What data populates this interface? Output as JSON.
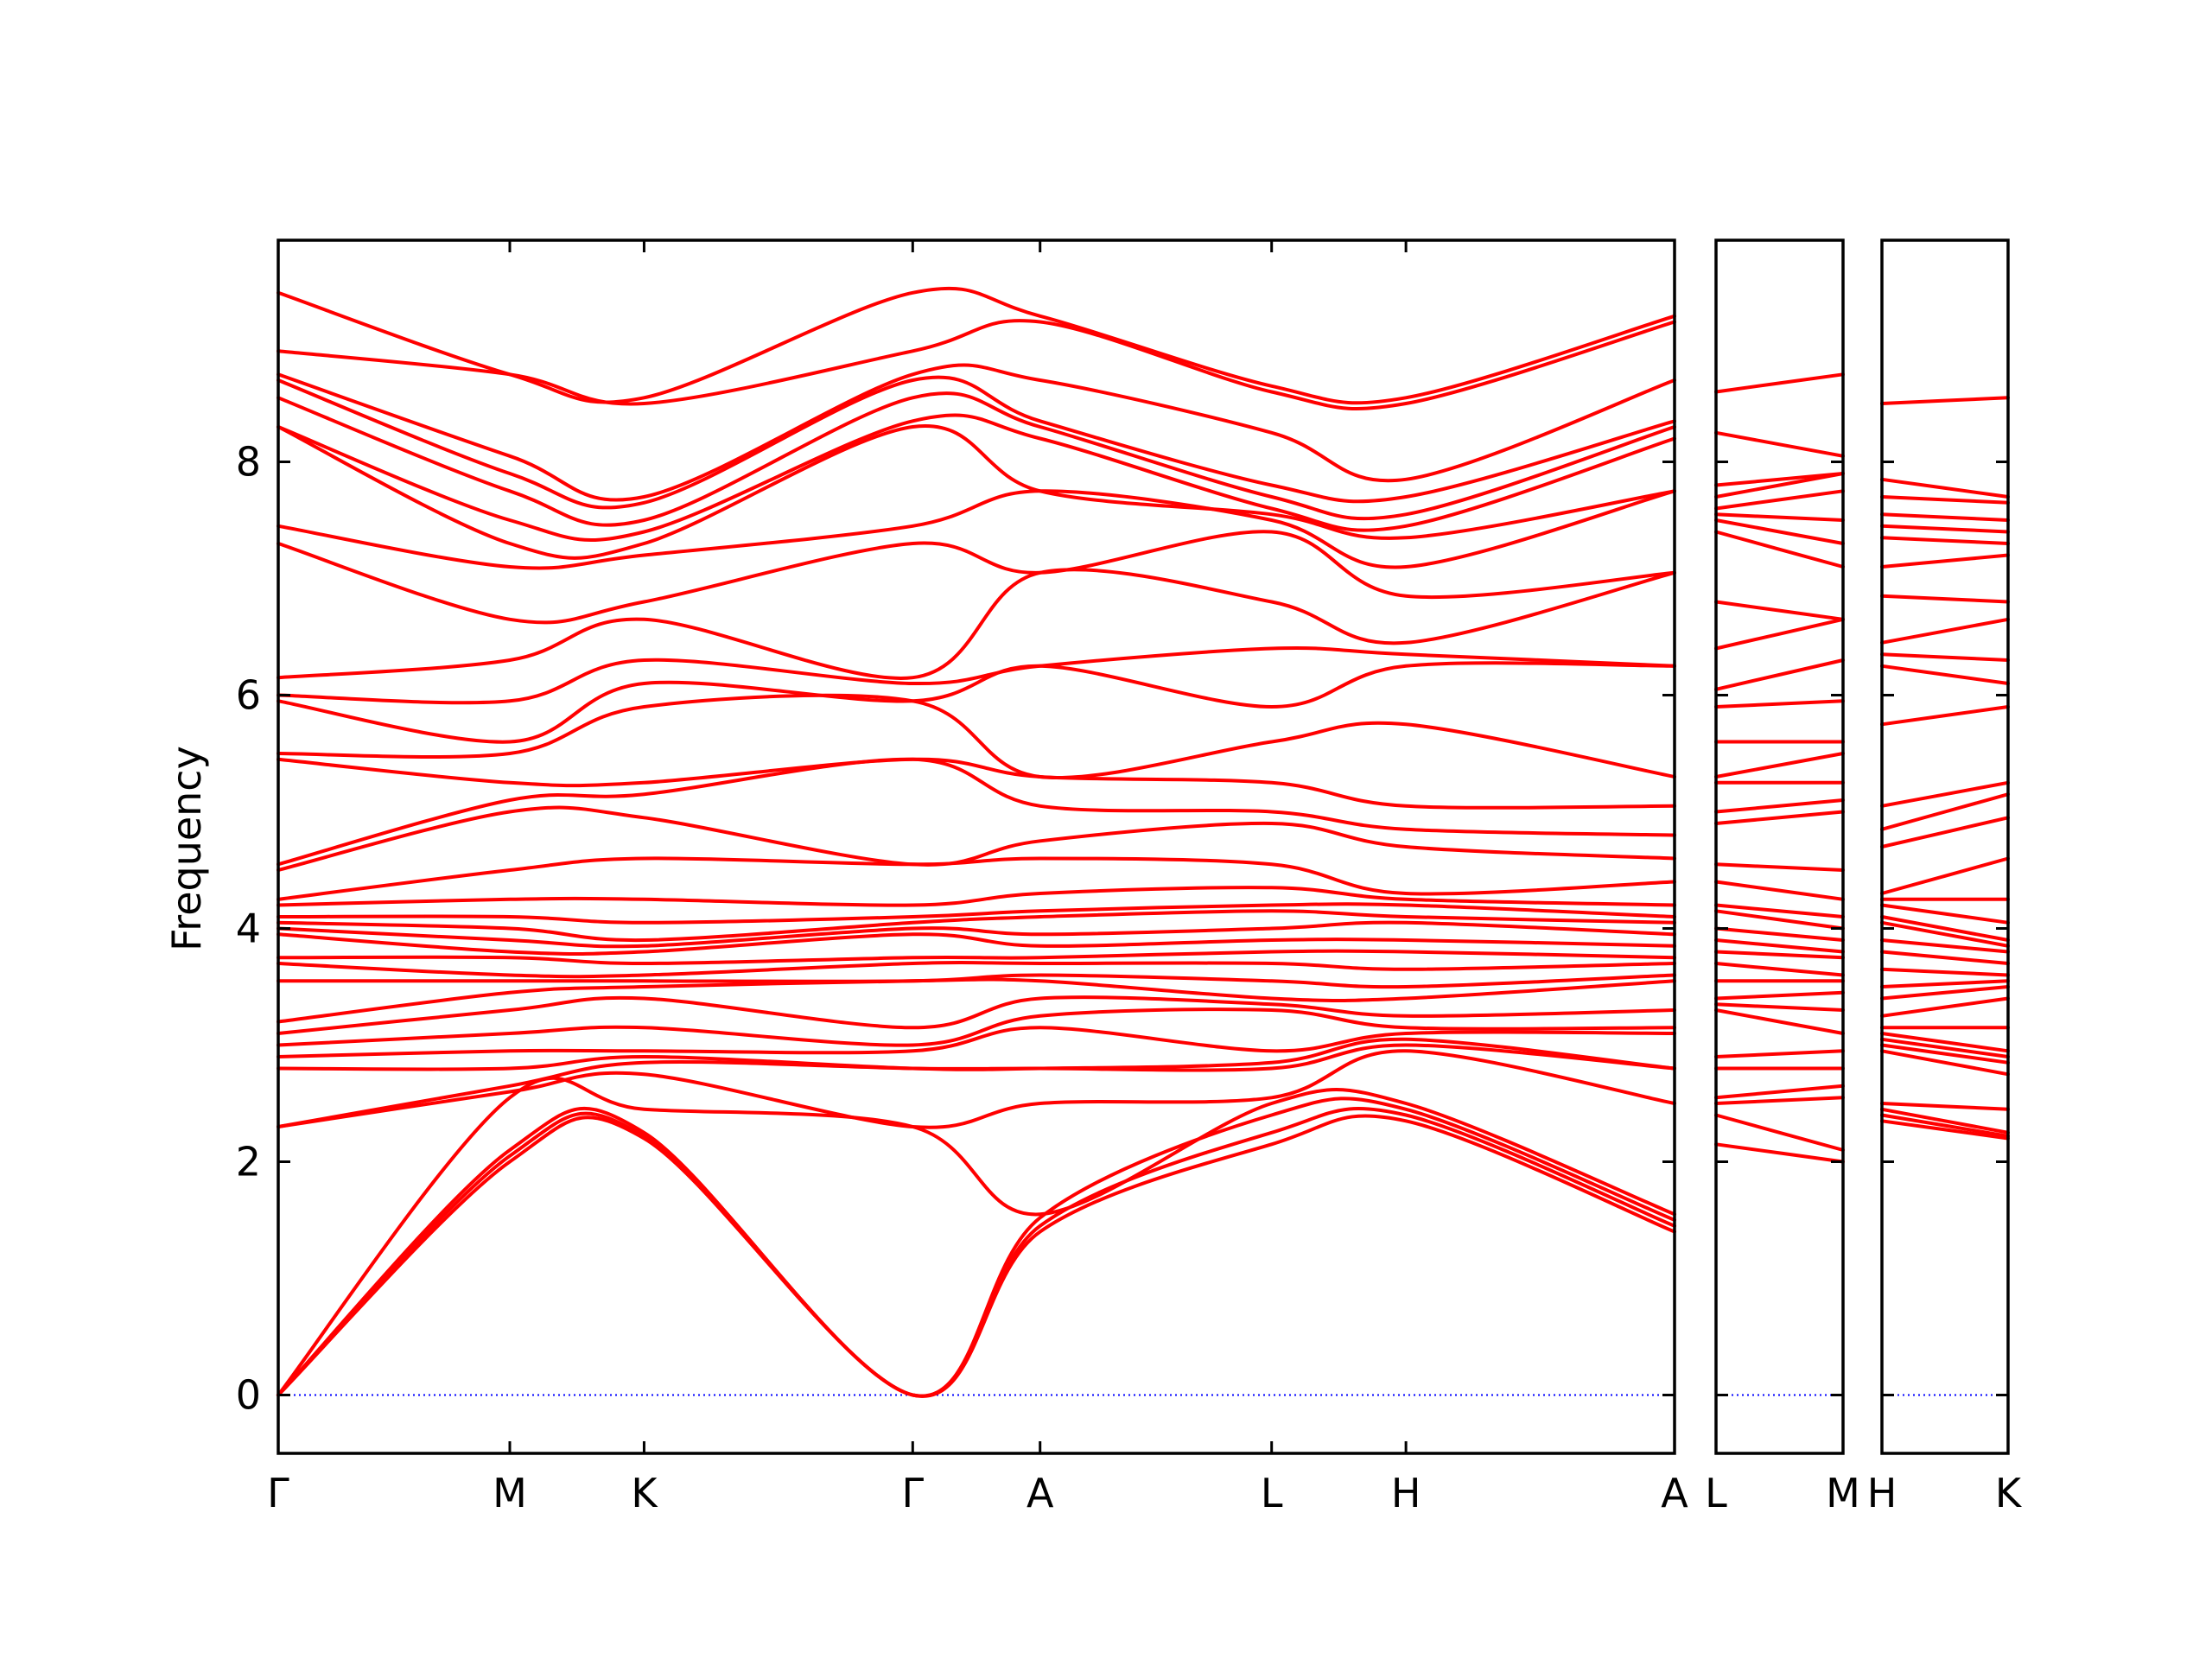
{
  "chart_data": {
    "type": "line",
    "ylabel": "Frequency",
    "ylim": [
      -0.5,
      9.9
    ],
    "yticks": [
      0,
      2,
      4,
      6,
      8
    ],
    "colors": {
      "bands": "#ff0000",
      "zero_line": "#0000ff",
      "frame": "#000000"
    },
    "grid": false,
    "panels": [
      {
        "name": "panel-1",
        "labels": [
          "Γ",
          "M",
          "K",
          "Γ",
          "A",
          "L",
          "H",
          "A"
        ],
        "positions": [
          0,
          1,
          1.58,
          2.74,
          3.29,
          4.29,
          4.87,
          6.03
        ],
        "bands": [
          [
            0,
            2.0,
            2.2,
            0,
            1.4,
            2.15,
            2.35,
            1.4
          ],
          [
            0,
            2.05,
            2.22,
            0,
            1.45,
            2.25,
            2.4,
            1.45
          ],
          [
            0,
            2.1,
            2.25,
            0,
            1.52,
            2.4,
            2.45,
            1.5
          ],
          [
            0,
            2.55,
            2.45,
            2.3,
            1.55,
            2.5,
            2.5,
            1.55
          ],
          [
            2.3,
            2.6,
            2.75,
            2.3,
            2.5,
            2.55,
            2.95,
            2.5
          ],
          [
            2.3,
            2.65,
            2.85,
            2.8,
            2.8,
            2.8,
            3.0,
            2.8
          ],
          [
            2.8,
            2.8,
            2.9,
            2.8,
            2.8,
            2.85,
            3.05,
            2.8
          ],
          [
            2.9,
            2.95,
            2.95,
            2.95,
            3.15,
            2.95,
            3.1,
            3.1
          ],
          [
            3.0,
            3.1,
            3.15,
            3.0,
            3.25,
            3.3,
            3.15,
            3.15
          ],
          [
            3.1,
            3.3,
            3.4,
            3.15,
            3.4,
            3.35,
            3.25,
            3.3
          ],
          [
            3.2,
            3.45,
            3.5,
            3.55,
            3.55,
            3.4,
            3.4,
            3.55
          ],
          [
            3.55,
            3.55,
            3.55,
            3.55,
            3.6,
            3.55,
            3.5,
            3.6
          ],
          [
            3.7,
            3.6,
            3.6,
            3.7,
            3.7,
            3.7,
            3.65,
            3.7
          ],
          [
            3.75,
            3.75,
            3.7,
            3.75,
            3.75,
            3.8,
            3.8,
            3.75
          ],
          [
            3.95,
            3.8,
            3.8,
            3.95,
            3.85,
            3.9,
            3.9,
            3.85
          ],
          [
            4.0,
            3.9,
            3.85,
            4.0,
            3.95,
            4.0,
            4.05,
            3.95
          ],
          [
            4.05,
            4.0,
            3.9,
            4.05,
            4.1,
            4.15,
            4.1,
            4.05
          ],
          [
            4.1,
            4.1,
            4.05,
            4.1,
            4.15,
            4.2,
            4.2,
            4.1
          ],
          [
            4.2,
            4.25,
            4.25,
            4.2,
            4.3,
            4.35,
            4.25,
            4.2
          ],
          [
            4.25,
            4.5,
            4.6,
            4.55,
            4.6,
            4.55,
            4.3,
            4.4
          ],
          [
            4.5,
            5.0,
            4.95,
            4.55,
            4.75,
            4.9,
            4.7,
            4.6
          ],
          [
            4.55,
            5.1,
            5.15,
            5.45,
            5.05,
            5.0,
            4.85,
            4.8
          ],
          [
            5.45,
            5.25,
            5.25,
            5.45,
            5.3,
            5.25,
            5.05,
            5.05
          ],
          [
            5.5,
            5.5,
            5.9,
            5.95,
            5.3,
            5.6,
            5.75,
            5.3
          ],
          [
            5.95,
            5.6,
            6.1,
            5.95,
            6.25,
            5.9,
            6.25,
            6.25
          ],
          [
            6.0,
            5.95,
            6.3,
            6.1,
            6.25,
            6.4,
            6.35,
            6.25
          ],
          [
            6.15,
            6.3,
            6.65,
            6.15,
            7.05,
            6.8,
            6.45,
            7.05
          ],
          [
            7.3,
            6.65,
            6.8,
            7.3,
            7.05,
            7.4,
            6.85,
            7.05
          ],
          [
            7.45,
            7.1,
            7.2,
            7.45,
            7.75,
            7.5,
            7.1,
            7.75
          ],
          [
            8.3,
            7.3,
            7.3,
            8.3,
            7.75,
            7.55,
            7.35,
            7.75
          ],
          [
            8.3,
            7.5,
            7.4,
            8.35,
            8.2,
            7.6,
            7.45,
            8.2
          ],
          [
            8.55,
            7.75,
            7.5,
            8.55,
            8.3,
            7.7,
            7.55,
            8.3
          ],
          [
            8.7,
            7.9,
            7.65,
            8.7,
            8.35,
            7.8,
            7.7,
            8.35
          ],
          [
            8.75,
            8.05,
            7.7,
            8.75,
            8.7,
            8.25,
            7.85,
            8.7
          ],
          [
            8.95,
            8.75,
            8.5,
            8.95,
            9.2,
            8.6,
            8.5,
            9.2
          ],
          [
            9.45,
            8.75,
            8.55,
            9.45,
            9.25,
            8.65,
            8.55,
            9.25
          ]
        ]
      },
      {
        "name": "panel-2",
        "labels": [
          "L",
          "M"
        ],
        "positions": [
          0,
          1
        ],
        "bands": [
          [
            2.15,
            2.0
          ],
          [
            2.4,
            2.1
          ],
          [
            2.5,
            2.55
          ],
          [
            2.55,
            2.65
          ],
          [
            2.8,
            2.8
          ],
          [
            2.9,
            2.95
          ],
          [
            3.3,
            3.1
          ],
          [
            3.35,
            3.3
          ],
          [
            3.4,
            3.45
          ],
          [
            3.55,
            3.55
          ],
          [
            3.7,
            3.6
          ],
          [
            3.8,
            3.75
          ],
          [
            3.9,
            3.8
          ],
          [
            4.0,
            3.9
          ],
          [
            4.15,
            4.0
          ],
          [
            4.2,
            4.1
          ],
          [
            4.4,
            4.25
          ],
          [
            4.55,
            4.5
          ],
          [
            4.9,
            5.0
          ],
          [
            5.0,
            5.1
          ],
          [
            5.25,
            5.25
          ],
          [
            5.3,
            5.5
          ],
          [
            5.6,
            5.6
          ],
          [
            5.9,
            5.95
          ],
          [
            6.05,
            6.3
          ],
          [
            6.4,
            6.65
          ],
          [
            6.8,
            6.65
          ],
          [
            7.4,
            7.1
          ],
          [
            7.5,
            7.3
          ],
          [
            7.55,
            7.5
          ],
          [
            7.6,
            7.75
          ],
          [
            7.7,
            7.9
          ],
          [
            7.8,
            7.9
          ],
          [
            8.25,
            8.05
          ],
          [
            8.6,
            8.75
          ]
        ]
      },
      {
        "name": "panel-3",
        "labels": [
          "H",
          "K"
        ],
        "positions": [
          0,
          1
        ],
        "bands": [
          [
            2.35,
            2.2
          ],
          [
            2.4,
            2.22
          ],
          [
            2.45,
            2.25
          ],
          [
            2.5,
            2.45
          ],
          [
            2.95,
            2.75
          ],
          [
            3.0,
            2.85
          ],
          [
            3.05,
            2.9
          ],
          [
            3.1,
            2.95
          ],
          [
            3.15,
            3.15
          ],
          [
            3.25,
            3.4
          ],
          [
            3.4,
            3.5
          ],
          [
            3.5,
            3.55
          ],
          [
            3.65,
            3.6
          ],
          [
            3.8,
            3.7
          ],
          [
            3.9,
            3.8
          ],
          [
            4.05,
            3.85
          ],
          [
            4.1,
            3.9
          ],
          [
            4.2,
            4.05
          ],
          [
            4.25,
            4.25
          ],
          [
            4.3,
            4.6
          ],
          [
            4.7,
            4.95
          ],
          [
            4.85,
            5.15
          ],
          [
            5.05,
            5.25
          ],
          [
            5.75,
            5.9
          ],
          [
            6.25,
            6.1
          ],
          [
            6.35,
            6.3
          ],
          [
            6.45,
            6.65
          ],
          [
            6.85,
            6.8
          ],
          [
            7.1,
            7.2
          ],
          [
            7.35,
            7.3
          ],
          [
            7.45,
            7.4
          ],
          [
            7.55,
            7.5
          ],
          [
            7.7,
            7.65
          ],
          [
            7.85,
            7.7
          ],
          [
            8.5,
            8.55
          ]
        ]
      }
    ]
  }
}
